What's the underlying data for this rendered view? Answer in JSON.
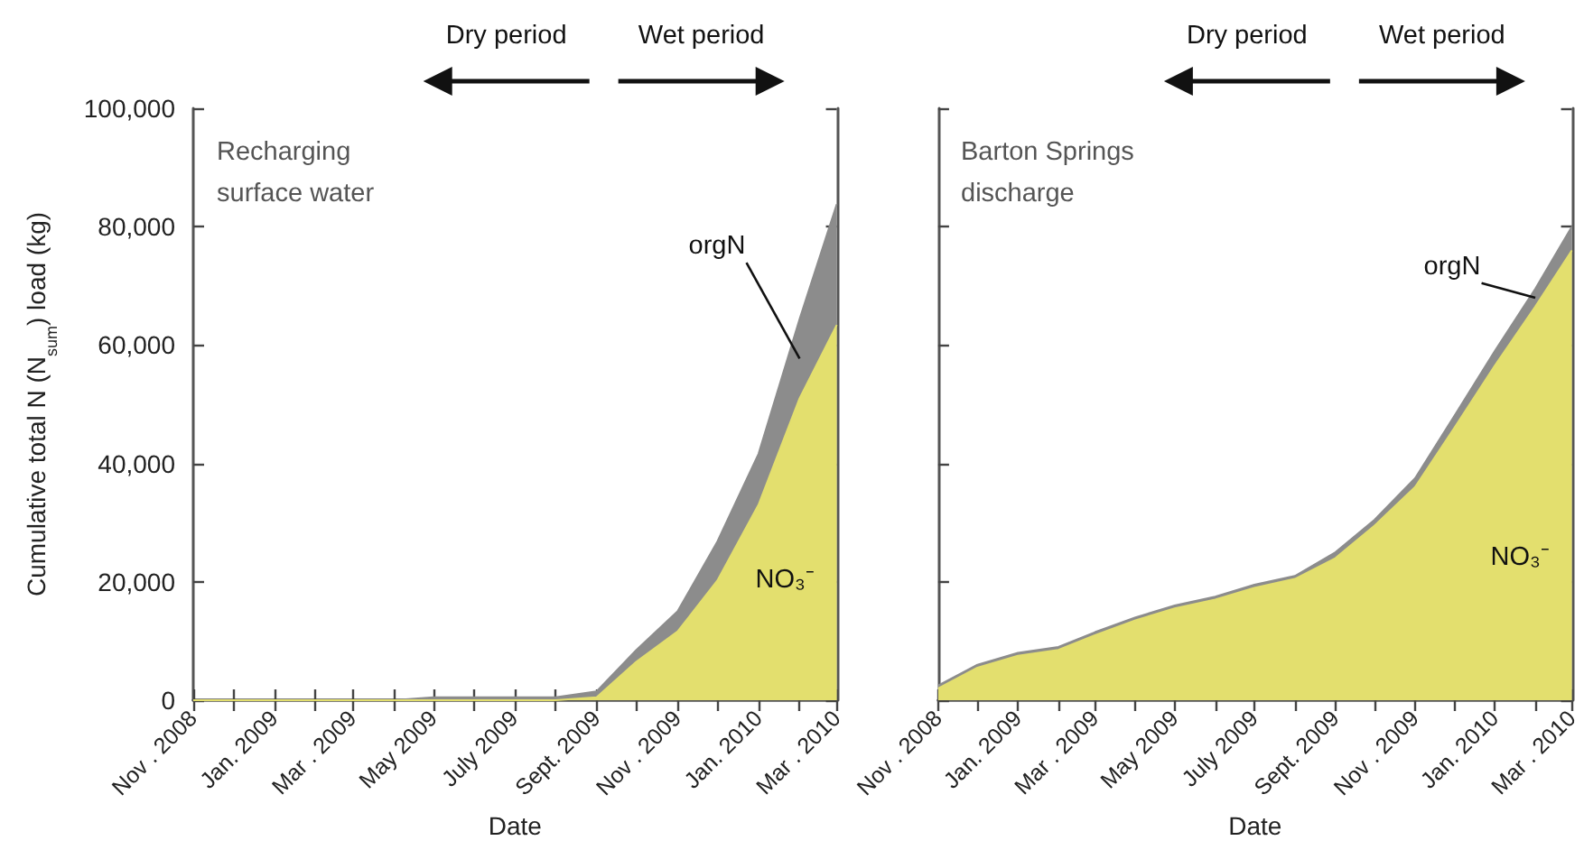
{
  "chart_data": [
    {
      "type": "area",
      "title": "Recharging surface water",
      "xlabel": "Date",
      "ylabel": "Cumulative total N (N$_{sum}$) load (kg)",
      "stacked": true,
      "legend": false,
      "grid": false,
      "annotations": [
        "Dry period",
        "Wet period"
      ],
      "x": [
        "2008-11",
        "2008-12",
        "2009-01",
        "2009-02",
        "2009-03",
        "2009-04",
        "2009-05",
        "2009-06",
        "2009-07",
        "2009-08",
        "2009-09",
        "2009-10",
        "2009-11",
        "2009-12",
        "2010-01",
        "2010-02",
        "2010-03"
      ],
      "series": [
        {
          "name": "NO₃⁻",
          "color": "#e3df6e",
          "values": [
            0,
            0,
            0,
            0,
            0,
            0,
            0,
            0,
            0,
            0,
            500,
            6500,
            11600,
            20200,
            33000,
            51000,
            63400
          ]
        },
        {
          "name": "orgN",
          "color": "#8c8c8c",
          "values": [
            0,
            0,
            0,
            0,
            0,
            0,
            500,
            500,
            500,
            500,
            1000,
            2000,
            3400,
            6600,
            8600,
            13400,
            20400
          ]
        }
      ],
      "xlim": [
        "2008-11",
        "2010-03"
      ],
      "xticks": [
        {
          "value": "2008-11",
          "label": "Nov . 2008"
        },
        {
          "value": "2008-12",
          "label": null
        },
        {
          "value": "2009-01",
          "label": "Jan. 2009"
        },
        {
          "value": "2009-02",
          "label": null
        },
        {
          "value": "2009-03",
          "label": "Mar . 2009"
        },
        {
          "value": "2009-04",
          "label": null
        },
        {
          "value": "2009-05",
          "label": "May 2009"
        },
        {
          "value": "2009-06",
          "label": null
        },
        {
          "value": "2009-07",
          "label": "July 2009"
        },
        {
          "value": "2009-08",
          "label": null
        },
        {
          "value": "2009-09",
          "label": "Sept. 2009"
        },
        {
          "value": "2009-10",
          "label": null
        },
        {
          "value": "2009-11",
          "label": "Nov . 2009"
        },
        {
          "value": "2009-12",
          "label": null
        },
        {
          "value": "2010-01",
          "label": "Jan. 2010"
        },
        {
          "value": "2010-02",
          "label": null
        },
        {
          "value": "2010-03",
          "label": "Mar . 2010"
        }
      ],
      "ylim": [
        0,
        100000
      ],
      "yticks": [
        {
          "value": 0,
          "label": "0"
        },
        {
          "value": 20000,
          "label": "20,000"
        },
        {
          "value": 40000,
          "label": "40,000"
        },
        {
          "value": 60000,
          "label": "60,000"
        },
        {
          "value": 80000,
          "label": "80,000"
        },
        {
          "value": 100000,
          "label": "100,000"
        }
      ]
    },
    {
      "type": "area",
      "title": "Barton Springs discharge",
      "xlabel": "Date",
      "stacked": true,
      "legend": false,
      "grid": false,
      "tick_labels": "x",
      "annotations": [
        "Dry period",
        "Wet period"
      ],
      "x": [
        "2008-11",
        "2008-12",
        "2009-01",
        "2009-02",
        "2009-03",
        "2009-04",
        "2009-05",
        "2009-06",
        "2009-07",
        "2009-08",
        "2009-09",
        "2009-10",
        "2009-11",
        "2009-12",
        "2010-01",
        "2010-02",
        "2010-03"
      ],
      "series": [
        {
          "name": "NO₃⁻",
          "color": "#e3df6e",
          "values": [
            2000,
            5500,
            7500,
            8500,
            11000,
            13500,
            15500,
            17000,
            19000,
            20500,
            24000,
            29500,
            36000,
            46000,
            56500,
            66500,
            76000
          ]
        },
        {
          "name": "orgN",
          "color": "#8c8c8c",
          "values": [
            500,
            500,
            500,
            500,
            500,
            500,
            500,
            500,
            500,
            500,
            1000,
            1000,
            1500,
            2000,
            2500,
            3000,
            4000
          ]
        }
      ],
      "xlim": [
        "2008-11",
        "2010-03"
      ],
      "xticks": [
        {
          "value": "2008-11",
          "label": "Nov . 2008"
        },
        {
          "value": "2008-12",
          "label": null
        },
        {
          "value": "2009-01",
          "label": "Jan. 2009"
        },
        {
          "value": "2009-02",
          "label": null
        },
        {
          "value": "2009-03",
          "label": "Mar . 2009"
        },
        {
          "value": "2009-04",
          "label": null
        },
        {
          "value": "2009-05",
          "label": "May 2009"
        },
        {
          "value": "2009-06",
          "label": null
        },
        {
          "value": "2009-07",
          "label": "July 2009"
        },
        {
          "value": "2009-08",
          "label": null
        },
        {
          "value": "2009-09",
          "label": "Sept. 2009"
        },
        {
          "value": "2009-10",
          "label": null
        },
        {
          "value": "2009-11",
          "label": "Nov . 2009"
        },
        {
          "value": "2009-12",
          "label": null
        },
        {
          "value": "2010-01",
          "label": "Jan. 2010"
        },
        {
          "value": "2010-02",
          "label": null
        },
        {
          "value": "2010-03",
          "label": "Mar . 2010"
        }
      ],
      "ylim": [
        0,
        100000
      ],
      "yticks": [
        {
          "value": 0,
          "label": null
        },
        {
          "value": 20000,
          "label": null
        },
        {
          "value": 40000,
          "label": null
        },
        {
          "value": 60000,
          "label": null
        },
        {
          "value": 80000,
          "label": null
        },
        {
          "value": 100000,
          "label": null
        }
      ]
    }
  ]
}
